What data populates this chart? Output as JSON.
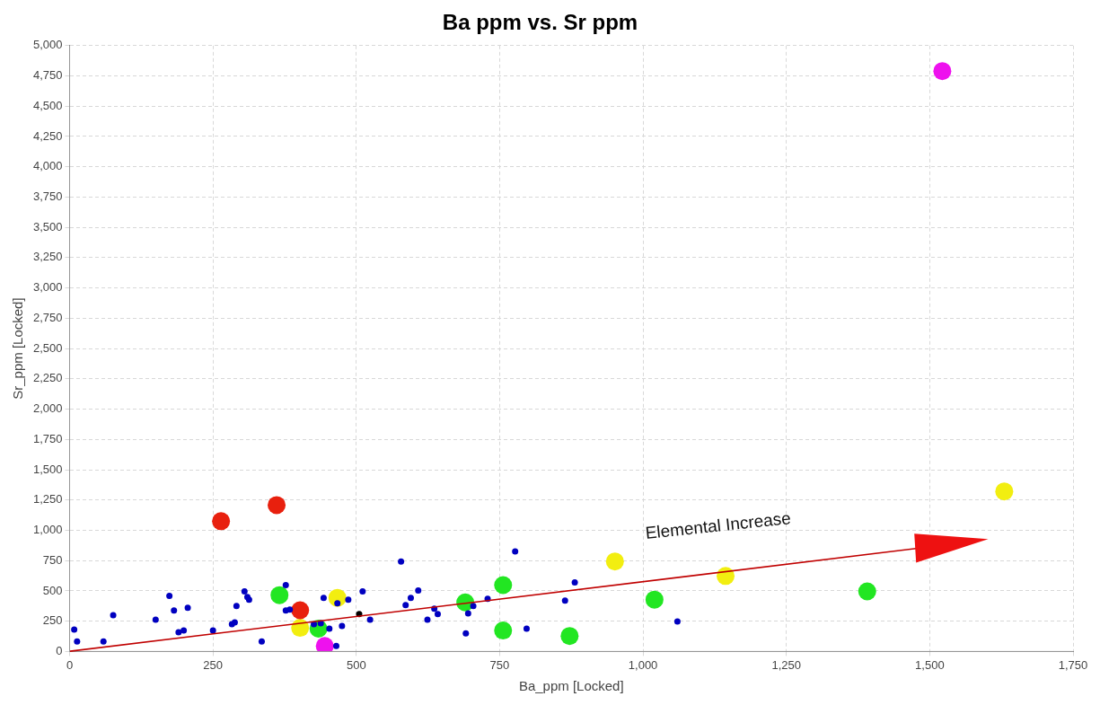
{
  "chart_data": {
    "type": "scatter",
    "title": "Ba ppm vs. Sr ppm",
    "xlabel": "Ba_ppm [Locked]",
    "ylabel": "Sr_ppm [Locked]",
    "annotations": [
      "Elemental Increase"
    ],
    "xlim": [
      0,
      1750
    ],
    "xticks": [
      0,
      250,
      500,
      750,
      {
        "value": 1000,
        "label": "1,000"
      },
      {
        "value": 1250,
        "label": "1,250"
      },
      {
        "value": 1500,
        "label": "1,500"
      },
      {
        "value": 1750,
        "label": "1,750"
      }
    ],
    "ylim": [
      0,
      5000
    ],
    "yticks": [
      0,
      250,
      500,
      750,
      {
        "value": 1000,
        "label": "1,000"
      },
      {
        "value": 1250,
        "label": "1,250"
      },
      {
        "value": 1500,
        "label": "1,500"
      },
      {
        "value": 1750,
        "label": "1,750"
      },
      {
        "value": 2000,
        "label": "2,000"
      },
      {
        "value": 2250,
        "label": "2,250"
      },
      {
        "value": 2500,
        "label": "2,500"
      },
      {
        "value": 2750,
        "label": "2,750"
      },
      {
        "value": 3000,
        "label": "3,000"
      },
      {
        "value": 3250,
        "label": "3,250"
      },
      {
        "value": 3500,
        "label": "3,500"
      },
      {
        "value": 3750,
        "label": "3,750"
      },
      {
        "value": 4000,
        "label": "4,000"
      },
      {
        "value": 4250,
        "label": "4,250"
      },
      {
        "value": 4500,
        "label": "4,500"
      },
      {
        "value": 4750,
        "label": "4,750"
      },
      {
        "value": 5000,
        "label": "5,000"
      }
    ],
    "grid": true,
    "marker": "circle",
    "series": [
      {
        "color": "#0000c0",
        "x": [
          8,
          13,
          59,
          76,
          150,
          174,
          182,
          206,
          190,
          199,
          250,
          283,
          288,
          291,
          305,
          310,
          313,
          335,
          377,
          377,
          384,
          426,
          438,
          443,
          453,
          465,
          467,
          486,
          475,
          511,
          524,
          578,
          586,
          595,
          608,
          624,
          636,
          642,
          691,
          695,
          704,
          729,
          777,
          797,
          864,
          881,
          1060
        ],
        "values": [
          180,
          83,
          83,
          300,
          263,
          458,
          338,
          360,
          158,
          173,
          173,
          225,
          240,
          375,
          495,
          450,
          428,
          83,
          548,
          338,
          345,
          225,
          233,
          443,
          188,
          45,
          398,
          428,
          210,
          495,
          263,
          743,
          383,
          443,
          503,
          263,
          353,
          308,
          150,
          315,
          375,
          435,
          826,
          188,
          420,
          570,
          248
        ]
      },
      {
        "color": "#000000",
        "x": [
          505
        ],
        "values": [
          308
        ]
      },
      {
        "color": "#e8200e",
        "x": [
          264,
          361,
          402
        ],
        "values": [
          1075,
          1208,
          340
        ]
      },
      {
        "color": "#ee11ee",
        "x": [
          1522,
          445
        ],
        "values": [
          4790,
          45
        ]
      },
      {
        "color": "#f2ee10",
        "x": [
          1630,
          951,
          1144,
          467,
          402
        ],
        "values": [
          1321,
          743,
          623,
          443,
          195
        ]
      },
      {
        "color": "#22e622",
        "x": [
          366,
          434,
          690,
          756,
          756,
          872,
          1020,
          1391
        ],
        "values": [
          465,
          188,
          405,
          548,
          173,
          128,
          428,
          496
        ]
      }
    ]
  }
}
